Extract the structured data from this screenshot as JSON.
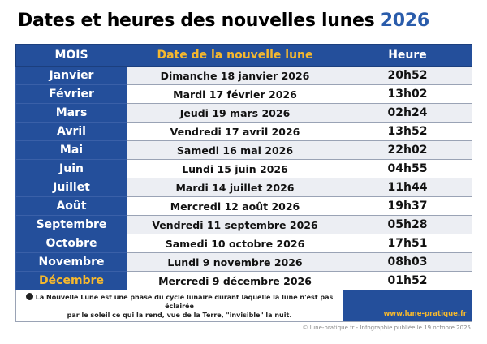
{
  "title": {
    "text": "Dates et heures des nouvelles lunes",
    "year": "2026"
  },
  "table": {
    "headers": {
      "month": "MOIS",
      "date": "Date de la nouvelle lune",
      "hour": "Heure"
    },
    "rows": [
      {
        "month": "Janvier",
        "date": "Dimanche 18 janvier 2026",
        "hour": "20h52"
      },
      {
        "month": "Février",
        "date": "Mardi 17 février 2026",
        "hour": "13h02"
      },
      {
        "month": "Mars",
        "date": "Jeudi 19 mars 2026",
        "hour": "02h24"
      },
      {
        "month": "Avril",
        "date": "Vendredi 17 avril 2026",
        "hour": "13h52"
      },
      {
        "month": "Mai",
        "date": "Samedi 16 mai 2026",
        "hour": "22h02"
      },
      {
        "month": "Juin",
        "date": "Lundi 15 juin 2026",
        "hour": "04h55"
      },
      {
        "month": "Juillet",
        "date": "Mardi 14 juillet 2026",
        "hour": "11h44"
      },
      {
        "month": "Août",
        "date": "Mercredi 12 août 2026",
        "hour": "19h37"
      },
      {
        "month": "Septembre",
        "date": "Vendredi 11 septembre 2026",
        "hour": "05h28"
      },
      {
        "month": "Octobre",
        "date": "Samedi 10 octobre 2026",
        "hour": "17h51"
      },
      {
        "month": "Novembre",
        "date": "Lundi 9 novembre 2026",
        "hour": "08h03"
      },
      {
        "month": "Décembre",
        "date": "Mercredi 9 décembre 2026",
        "hour": "01h52"
      }
    ],
    "footnote": {
      "line1": "La Nouvelle Lune est une phase du cycle lunaire durant laquelle la lune n'est pas éclairée",
      "line2": "par le soleil ce qui la rend, vue de la Terre, \"invisible\" la nuit.",
      "icon": "new-moon-icon"
    },
    "website": "www.lune-pratique.fr"
  },
  "copyright": "© lune-pratique.fr - Infographie publiée le 19 octobre 2025",
  "colors": {
    "header_bg": "#244f9b",
    "accent": "#f5b82e",
    "title_year": "#2a5cab",
    "alt_row": "#eceef3"
  }
}
